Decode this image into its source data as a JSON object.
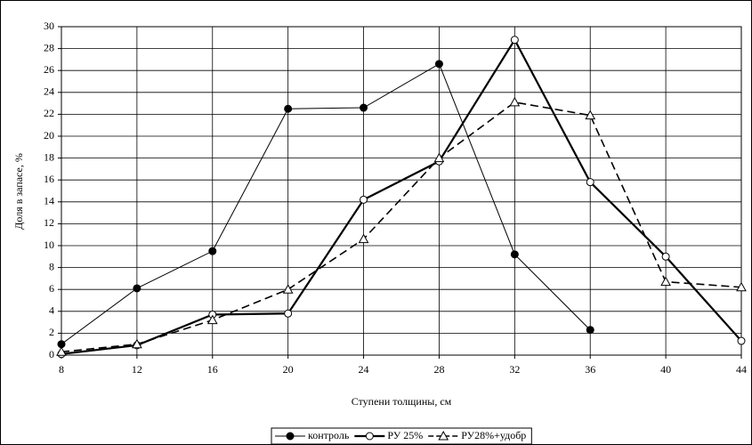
{
  "chart_data": {
    "type": "line",
    "x_label": "Ступени толщины, см",
    "y_label": "Доля в запасе, %",
    "x": [
      8,
      12,
      16,
      20,
      24,
      28,
      32,
      36,
      40,
      44
    ],
    "series": [
      {
        "name": "контроль",
        "color": "#000000",
        "width": 1,
        "dash": false,
        "marker": "filled-circle",
        "values": [
          1.0,
          6.1,
          9.5,
          22.5,
          22.6,
          26.6,
          9.2,
          2.3,
          null,
          null
        ]
      },
      {
        "name": "РУ 25%",
        "color": "#000000",
        "width": 2.2,
        "dash": false,
        "marker": "open-circle",
        "values": [
          0.1,
          0.9,
          3.7,
          3.8,
          14.2,
          17.7,
          28.8,
          15.8,
          9.0,
          1.3
        ]
      },
      {
        "name": "РУ28%+удобр",
        "color": "#000000",
        "width": 1.6,
        "dash": true,
        "marker": "open-triangle",
        "values": [
          0.3,
          1.0,
          3.2,
          6.0,
          10.6,
          18.0,
          23.1,
          21.9,
          6.7,
          6.2
        ]
      }
    ],
    "xlim": [
      8,
      44
    ],
    "xticks": [
      8,
      12,
      16,
      20,
      24,
      28,
      32,
      36,
      40,
      44
    ],
    "ylim": [
      0,
      30
    ],
    "yticks": [
      0,
      2,
      4,
      6,
      8,
      10,
      12,
      14,
      16,
      18,
      20,
      22,
      24,
      26,
      28,
      30
    ],
    "grid": true,
    "legend": "bottom"
  }
}
